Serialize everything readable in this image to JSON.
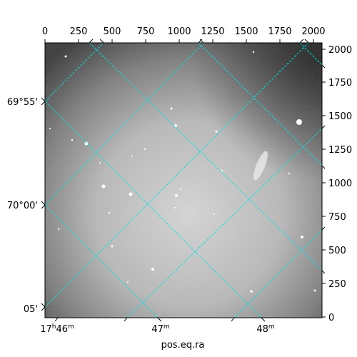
{
  "figure": {
    "xlabel": "pos.eq.ra",
    "top_ticks": [
      "0",
      "250",
      "500",
      "750",
      "1000",
      "1250",
      "1500",
      "1750",
      "2000"
    ],
    "right_ticks": [
      "0",
      "250",
      "500",
      "750",
      "1000",
      "1250",
      "1500",
      "1750",
      "2000"
    ],
    "dec_labels": [
      "69°55'",
      "70°00'",
      "05'"
    ],
    "ra_labels": [
      {
        "hm": "17",
        "hs": "h",
        "m": "46",
        "ms": "m"
      },
      {
        "hm": "47",
        "hs": "",
        "m": "",
        "ms": "m"
      },
      {
        "hm": "48",
        "hs": "",
        "m": "",
        "ms": "m"
      }
    ],
    "colors": {
      "grid": "#00e5e5",
      "frame": "#000000",
      "sky": "grayscale"
    }
  }
}
